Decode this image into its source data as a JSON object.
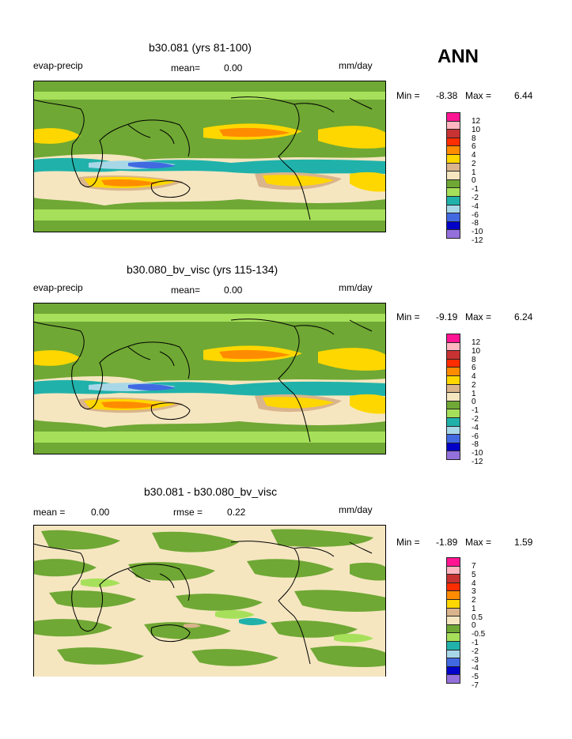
{
  "season": "ANN",
  "colors": {
    "magenta": "#ff1493",
    "pink": "#ffb6c1",
    "darkred": "#c83232",
    "red": "#ff2d00",
    "orange": "#ff8c00",
    "yellow": "#ffd700",
    "tan": "#d9b48c",
    "cream": "#f5e6c0",
    "green": "#6fa834",
    "lightgreen": "#a6e05a",
    "teal": "#20b2aa",
    "lightblue": "#a8d8e8",
    "blue": "#4169e1",
    "darkblue": "#0000c8",
    "purple": "#9370db"
  },
  "panels": [
    {
      "title": "b30.081 (yrs 81-100)",
      "left_label": "evap-precip",
      "center_label": "mean=",
      "center_value": "0.00",
      "unit": "mm/day",
      "min_label": "Min =",
      "min_value": "-8.38",
      "max_label": "Max =",
      "max_value": "6.44",
      "legend": [
        "12",
        "10",
        "8",
        "6",
        "4",
        "2",
        "1",
        "0",
        "-1",
        "-2",
        "-4",
        "-6",
        "-8",
        "-10",
        "-12"
      ]
    },
    {
      "title": "b30.080_bv_visc (yrs 115-134)",
      "left_label": "evap-precip",
      "center_label": "mean=",
      "center_value": "0.00",
      "unit": "mm/day",
      "min_label": "Min =",
      "min_value": "-9.19",
      "max_label": "Max =",
      "max_value": "6.24",
      "legend": [
        "12",
        "10",
        "8",
        "6",
        "4",
        "2",
        "1",
        "0",
        "-1",
        "-2",
        "-4",
        "-6",
        "-8",
        "-10",
        "-12"
      ]
    },
    {
      "title": "b30.081 - b30.080_bv_visc",
      "left_label": "mean =",
      "left_value": "0.00",
      "center_label": "rmse =",
      "center_value": "0.22",
      "unit": "mm/day",
      "min_label": "Min =",
      "min_value": "-1.89",
      "max_label": "Max =",
      "max_value": "1.59",
      "legend": [
        "7",
        "5",
        "4",
        "3",
        "2",
        "1",
        "0.5",
        "0",
        "-0.5",
        "-1",
        "-2",
        "-3",
        "-4",
        "-5",
        "-7"
      ]
    }
  ]
}
